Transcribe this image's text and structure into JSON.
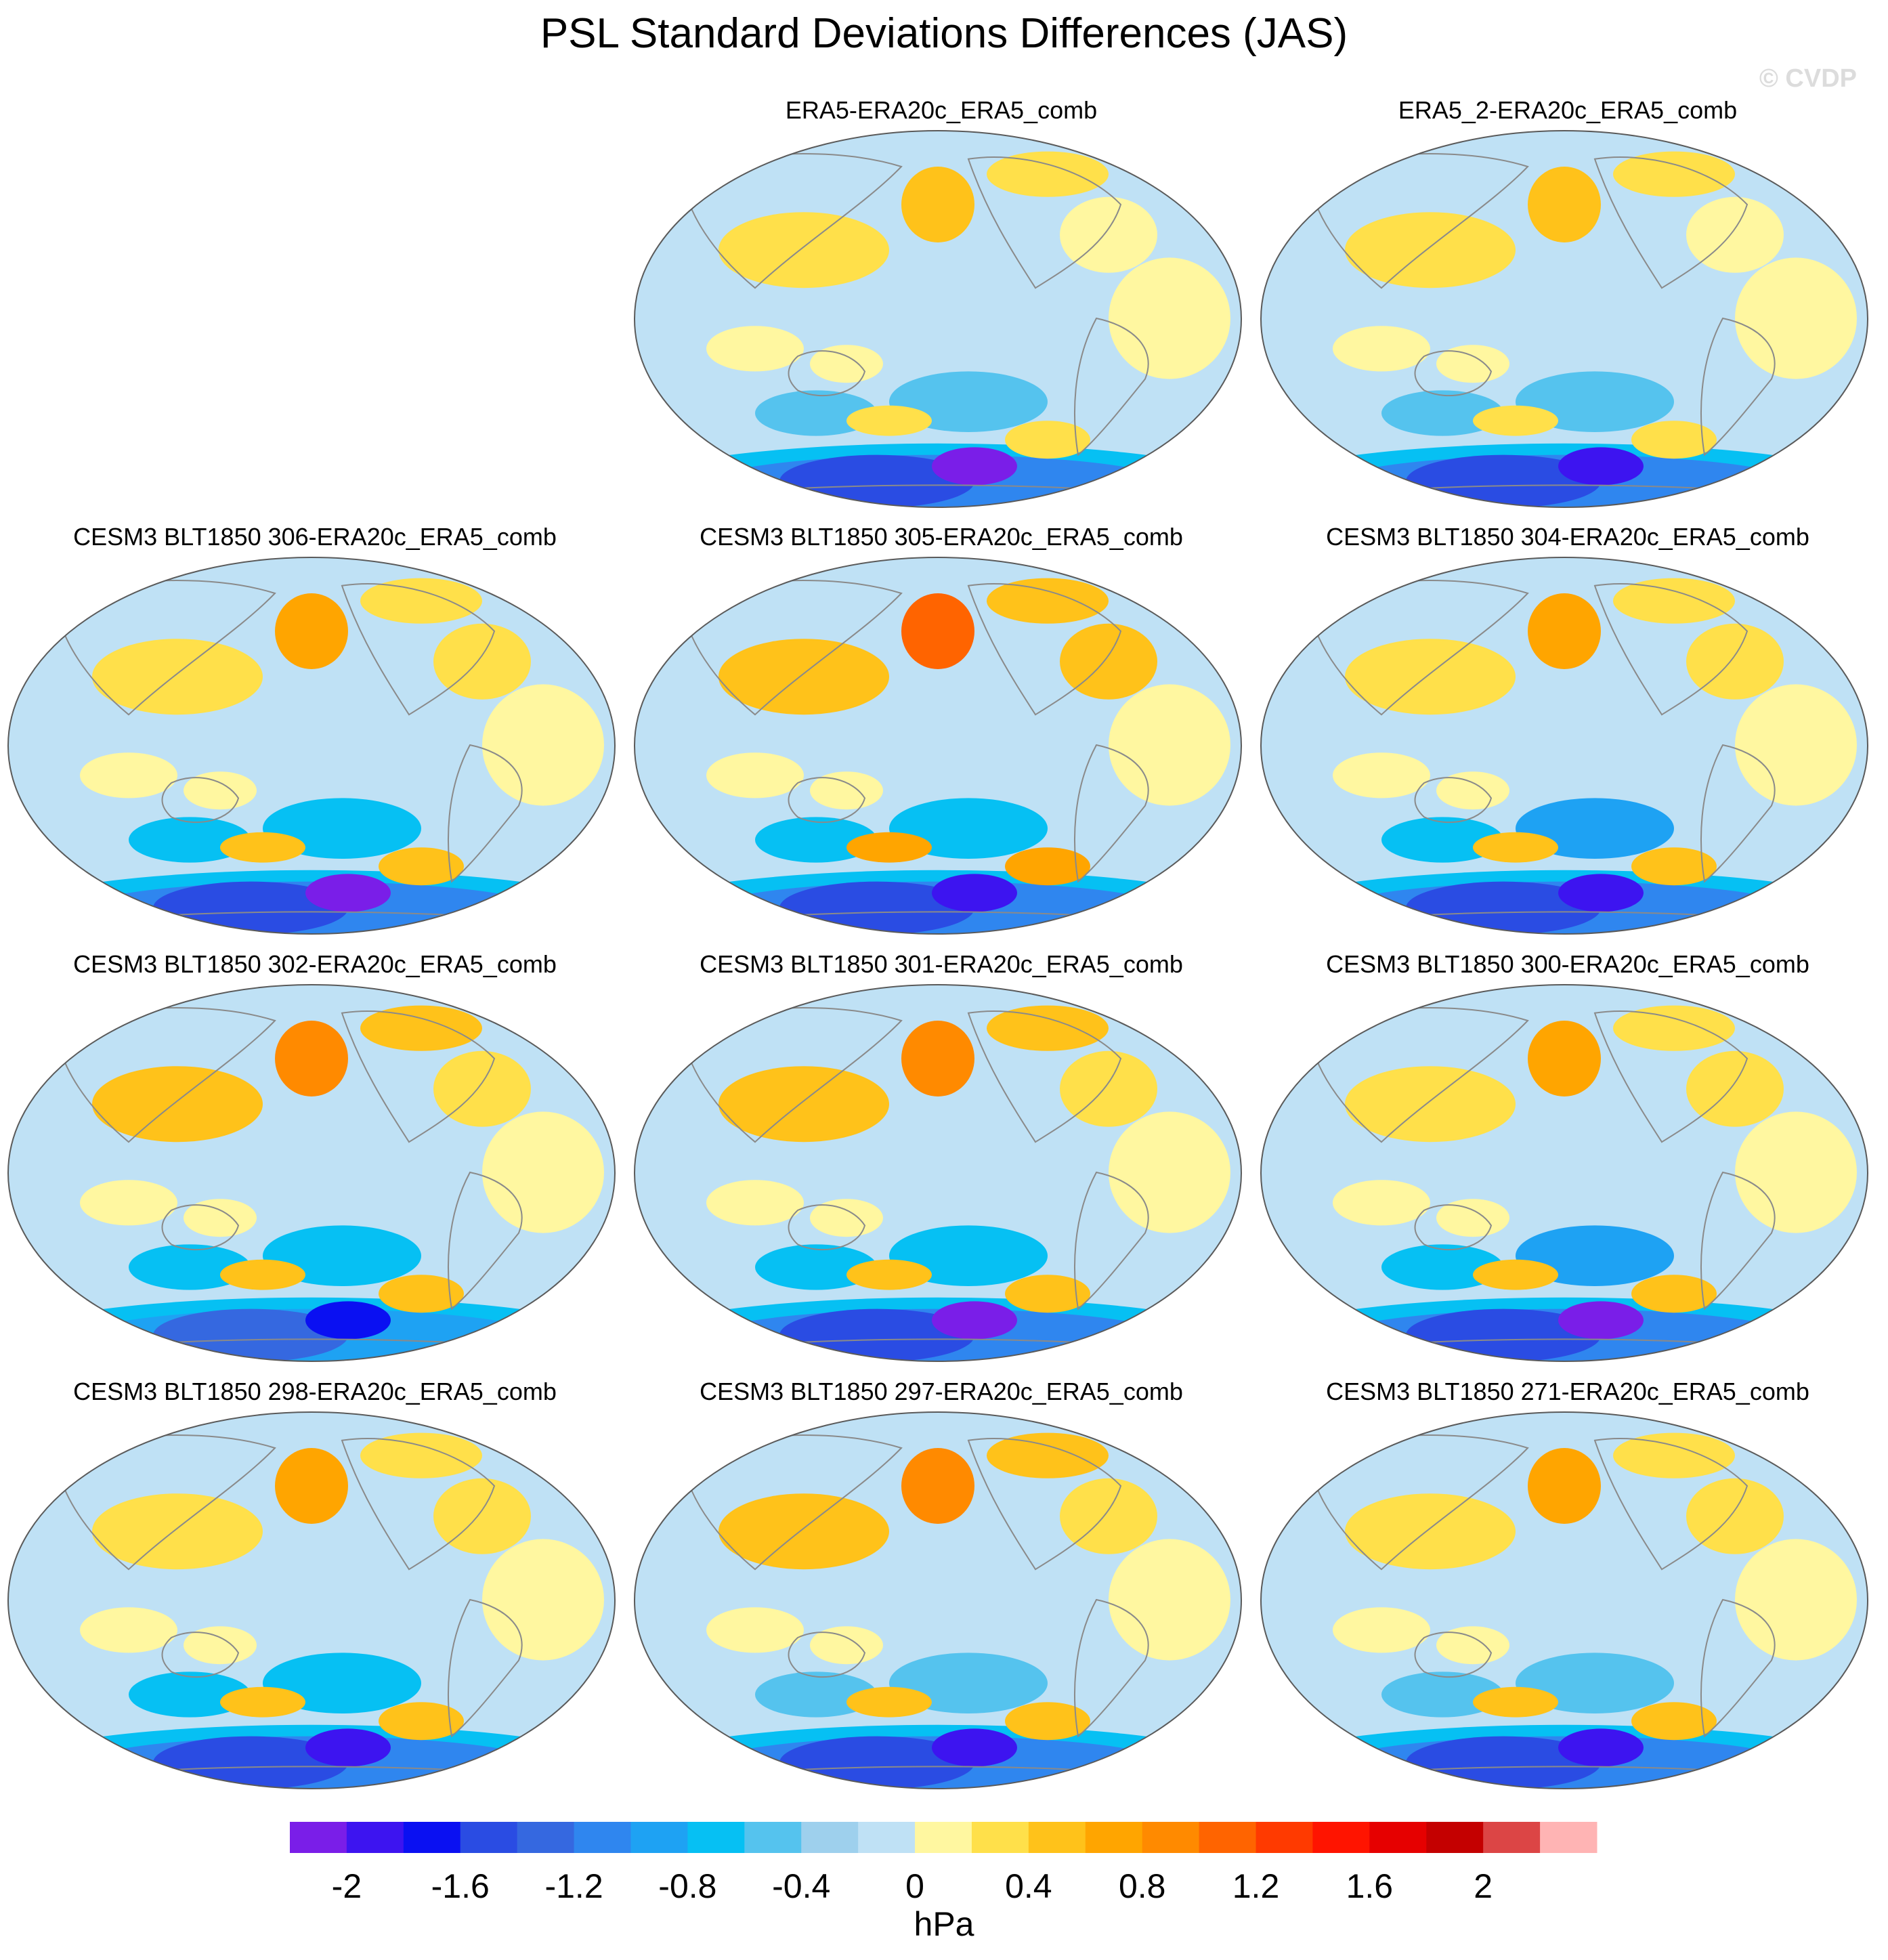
{
  "title": "PSL Standard Deviations Differences (JAS)",
  "watermark": "© CVDP",
  "colors": {
    "land_outline": "#8a8a8a",
    "map_border": "#5a5a5a"
  },
  "chart_data": {
    "type": "heatmap",
    "projection": "Robinson (Pacific-centered)",
    "units": "hPa",
    "colorbar": {
      "levels": [
        -2.2,
        -2.0,
        -1.8,
        -1.6,
        -1.4,
        -1.2,
        -1.0,
        -0.8,
        -0.6,
        -0.4,
        -0.2,
        0,
        0.2,
        0.4,
        0.6,
        0.8,
        1.0,
        1.2,
        1.4,
        1.6,
        1.8,
        2.0,
        2.2
      ],
      "tick_values": [
        -2,
        -1.6,
        -1.2,
        -0.8,
        -0.4,
        0,
        0.4,
        0.8,
        1.2,
        1.6,
        2
      ],
      "tick_labels": [
        "-2",
        "-1.6",
        "-1.2",
        "-0.8",
        "-0.4",
        "0",
        "0.4",
        "0.8",
        "1.2",
        "1.6",
        "2"
      ],
      "colors": [
        "#7a1ee8",
        "#3d14f0",
        "#0a10f2",
        "#2a4ce3",
        "#3568e0",
        "#2f86ef",
        "#1ea2f3",
        "#06c0f3",
        "#55c3ee",
        "#9ed0ed",
        "#bfe1f5",
        "#fff7a0",
        "#ffe04a",
        "#ffc21a",
        "#ffa500",
        "#ff8a00",
        "#ff6400",
        "#ff3a00",
        "#ff1400",
        "#e60000",
        "#c40000",
        "#dc4545",
        "#ffb4b4"
      ],
      "label": "hPa"
    },
    "panels": [
      {
        "title": "ERA5-ERA20c_ERA5_comb",
        "row": 0,
        "col": 1,
        "southern_ocean_min": -2.1,
        "north_pacific_max": 0.4,
        "extratropical_min": -0.6
      },
      {
        "title": "ERA5_2-ERA20c_ERA5_comb",
        "row": 0,
        "col": 2,
        "southern_ocean_min": -2.0,
        "north_pacific_max": 0.4,
        "extratropical_min": -0.6
      },
      {
        "title": "CESM3 BLT1850 306-ERA20c_ERA5_comb",
        "row": 1,
        "col": 0,
        "southern_ocean_min": -2.1,
        "north_pacific_max": 0.6,
        "extratropical_min": -0.8
      },
      {
        "title": "CESM3 BLT1850 305-ERA20c_ERA5_comb",
        "row": 1,
        "col": 1,
        "southern_ocean_min": -2.0,
        "north_pacific_max": 1.0,
        "extratropical_min": -0.8
      },
      {
        "title": "CESM3 BLT1850 304-ERA20c_ERA5_comb",
        "row": 1,
        "col": 2,
        "southern_ocean_min": -2.0,
        "north_pacific_max": 0.6,
        "extratropical_min": -1.0
      },
      {
        "title": "CESM3 BLT1850 302-ERA20c_ERA5_comb",
        "row": 2,
        "col": 0,
        "southern_ocean_min": -1.8,
        "north_pacific_max": 0.8,
        "extratropical_min": -0.8
      },
      {
        "title": "CESM3 BLT1850 301-ERA20c_ERA5_comb",
        "row": 2,
        "col": 1,
        "southern_ocean_min": -2.1,
        "north_pacific_max": 0.8,
        "extratropical_min": -0.8
      },
      {
        "title": "CESM3 BLT1850 300-ERA20c_ERA5_comb",
        "row": 2,
        "col": 2,
        "southern_ocean_min": -2.1,
        "north_pacific_max": 0.6,
        "extratropical_min": -1.0
      },
      {
        "title": "CESM3 BLT1850 298-ERA20c_ERA5_comb",
        "row": 3,
        "col": 0,
        "southern_ocean_min": -1.9,
        "north_pacific_max": 0.6,
        "extratropical_min": -0.8
      },
      {
        "title": "CESM3 BLT1850 297-ERA20c_ERA5_comb",
        "row": 3,
        "col": 1,
        "southern_ocean_min": -2.0,
        "north_pacific_max": 0.8,
        "extratropical_min": -0.6
      },
      {
        "title": "CESM3 BLT1850 271-ERA20c_ERA5_comb",
        "row": 3,
        "col": 2,
        "southern_ocean_min": -1.9,
        "north_pacific_max": 0.6,
        "extratropical_min": -0.6
      }
    ]
  }
}
